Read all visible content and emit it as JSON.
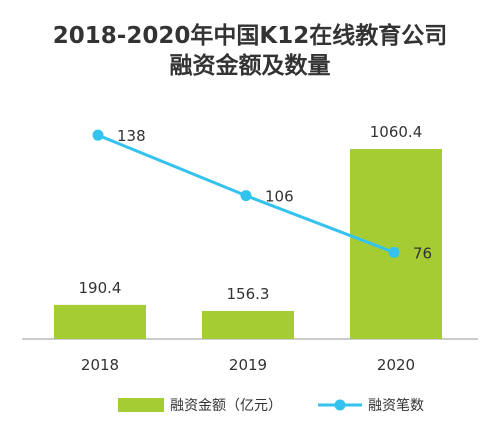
{
  "chart_data": {
    "type": "bar",
    "title": "2018-2020年中国K12在线教育公司",
    "subtitle": "融资金额及数量",
    "categories": [
      "2018",
      "2019",
      "2020"
    ],
    "series": [
      {
        "name": "融资金额（亿元）",
        "type": "bar",
        "values": [
          190.4,
          156.3,
          1060.4
        ],
        "labels": [
          "190.4",
          "156.3",
          "1060.4"
        ]
      },
      {
        "name": "融资笔数",
        "type": "line",
        "values": [
          138,
          106,
          76
        ],
        "labels": [
          "138",
          "106",
          "76"
        ]
      }
    ],
    "colors": {
      "bar": "#a6cc33",
      "line": "#33c3ee",
      "axis": "#999999"
    },
    "legend_position": "bottom",
    "grid": false
  }
}
